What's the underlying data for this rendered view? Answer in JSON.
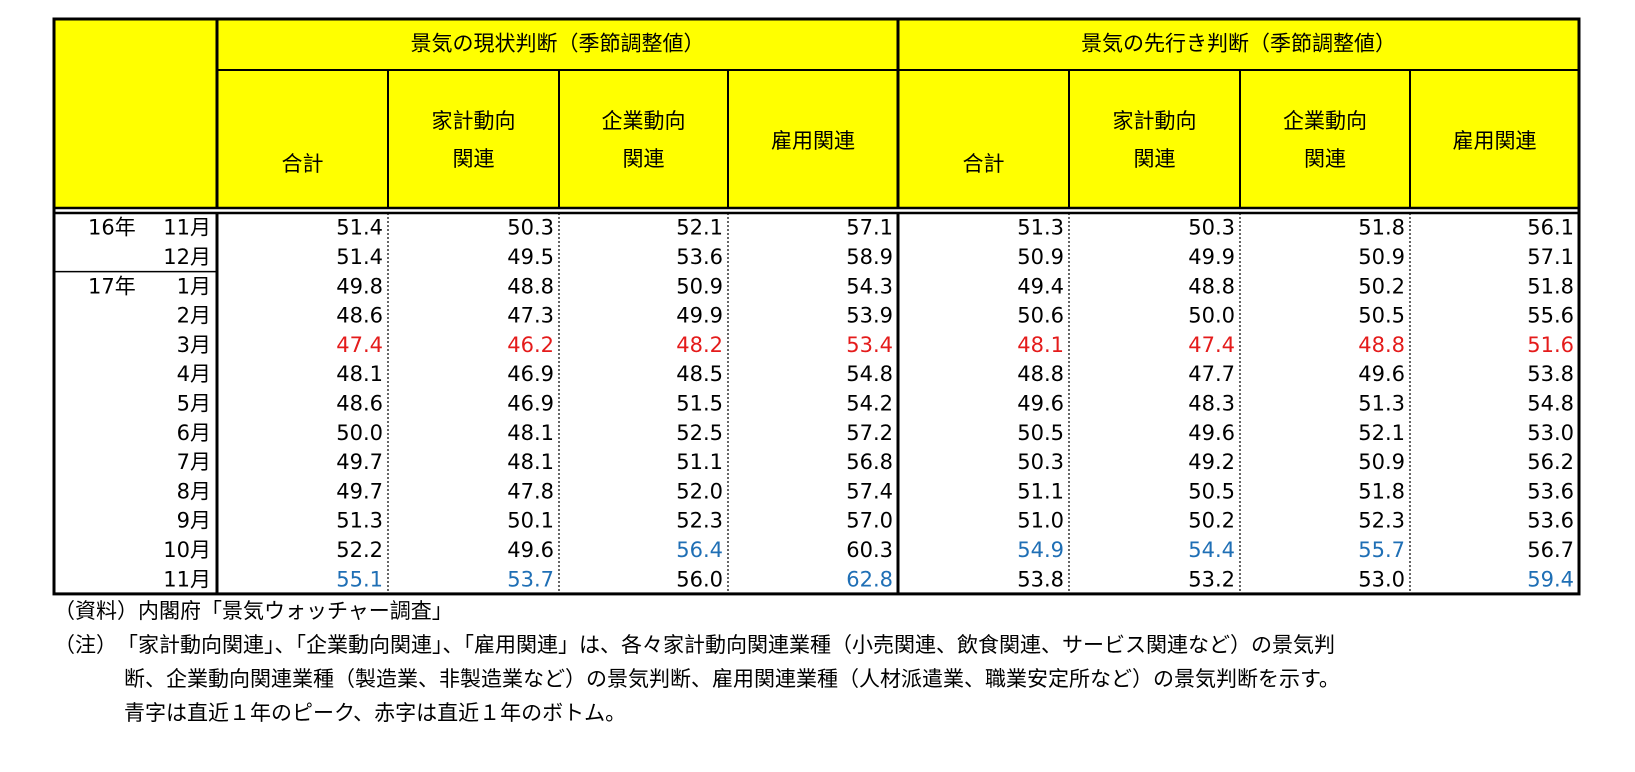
{
  "table": {
    "groups": [
      "景気の現状判断（季節調整値）",
      "景気の先行き判断（季節調整値）"
    ],
    "columns": [
      "合計",
      "家計動向\n関連",
      "企業動向\n関連",
      "雇用関連",
      "合計",
      "家計動向\n関連",
      "企業動向\n関連",
      "雇用関連"
    ],
    "peak_color": "#1f6fb5",
    "bottom_color": "#e41b1b",
    "rows": [
      {
        "year": "16年",
        "month": "11月",
        "values": [
          "51.4",
          "50.3",
          "52.1",
          "57.1",
          "51.3",
          "50.3",
          "51.8",
          "56.1"
        ]
      },
      {
        "month": "12月",
        "values": [
          "51.4",
          "49.5",
          "53.6",
          "58.9",
          "50.9",
          "49.9",
          "50.9",
          "57.1"
        ]
      },
      {
        "year": "17年",
        "month": "1月",
        "values": [
          "49.8",
          "48.8",
          "50.9",
          "54.3",
          "49.4",
          "48.8",
          "50.2",
          "51.8"
        ]
      },
      {
        "month": "2月",
        "values": [
          "48.6",
          "47.3",
          "49.9",
          "53.9",
          "50.6",
          "50.0",
          "50.5",
          "55.6"
        ]
      },
      {
        "month": "3月",
        "values": [
          "47.4",
          "46.2",
          "48.2",
          "53.4",
          "48.1",
          "47.4",
          "48.8",
          "51.6"
        ],
        "bottom": [
          0,
          1,
          2,
          3,
          4,
          5,
          6,
          7
        ]
      },
      {
        "month": "4月",
        "values": [
          "48.1",
          "46.9",
          "48.5",
          "54.8",
          "48.8",
          "47.7",
          "49.6",
          "53.8"
        ]
      },
      {
        "month": "5月",
        "values": [
          "48.6",
          "46.9",
          "51.5",
          "54.2",
          "49.6",
          "48.3",
          "51.3",
          "54.8"
        ]
      },
      {
        "month": "6月",
        "values": [
          "50.0",
          "48.1",
          "52.5",
          "57.2",
          "50.5",
          "49.6",
          "52.1",
          "53.0"
        ]
      },
      {
        "month": "7月",
        "values": [
          "49.7",
          "48.1",
          "51.1",
          "56.8",
          "50.3",
          "49.2",
          "50.9",
          "56.2"
        ]
      },
      {
        "month": "8月",
        "values": [
          "49.7",
          "47.8",
          "52.0",
          "57.4",
          "51.1",
          "50.5",
          "51.8",
          "53.6"
        ]
      },
      {
        "month": "9月",
        "values": [
          "51.3",
          "50.1",
          "52.3",
          "57.0",
          "51.0",
          "50.2",
          "52.3",
          "53.6"
        ]
      },
      {
        "month": "10月",
        "values": [
          "52.2",
          "49.6",
          "56.4",
          "60.3",
          "54.9",
          "54.4",
          "55.7",
          "56.7"
        ],
        "peak": [
          2,
          4,
          5,
          6
        ]
      },
      {
        "month": "11月",
        "values": [
          "55.1",
          "53.7",
          "56.0",
          "62.8",
          "53.8",
          "53.2",
          "53.0",
          "59.4"
        ],
        "peak": [
          0,
          1,
          3,
          7
        ]
      }
    ]
  },
  "notes": {
    "source": "（資料）内閣府「景気ウォッチャー調査」",
    "label": "（注）",
    "lines": [
      "「家計動向関連」、「企業動向関連」、「雇用関連」は、各々家計動向関連業種（小売関連、飲食関連、サービス関連など）の景気判",
      "断、企業動向関連業種（製造業、非製造業など）の景気判断、雇用関連業種（人材派遣業、職業安定所など）の景気判断を示す。",
      "青字は直近１年のピーク、赤字は直近１年のボトム。"
    ]
  }
}
